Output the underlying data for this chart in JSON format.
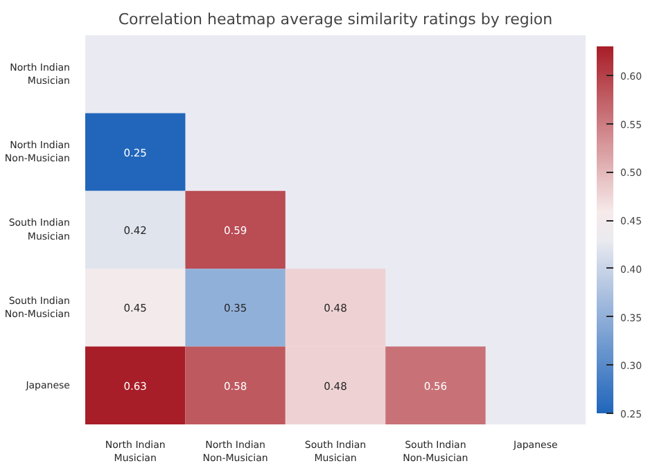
{
  "chart_data": {
    "type": "heatmap",
    "title": "Correlation heatmap average similarity ratings by region",
    "categories": [
      "North Indian Musician",
      "North Indian Non-Musician",
      "South Indian Musician",
      "South Indian Non-Musician",
      "Japanese"
    ],
    "y_categories": [
      "North Indian Musician",
      "North Indian Non-Musician",
      "South Indian Musician",
      "South Indian Non-Musician",
      "Japanese"
    ],
    "cells": [
      [
        null,
        null,
        null,
        null,
        null
      ],
      [
        0.25,
        null,
        null,
        null,
        null
      ],
      [
        0.42,
        0.59,
        null,
        null,
        null
      ],
      [
        0.45,
        0.35,
        0.48,
        null,
        null
      ],
      [
        0.63,
        0.58,
        0.48,
        0.56,
        null
      ]
    ],
    "clim": [
      0.25,
      0.63
    ],
    "cticks": [
      0.25,
      {
        "value": 0.3,
        "label": "0.30"
      },
      0.35,
      {
        "value": 0.4,
        "label": "0.40"
      },
      0.45,
      {
        "value": 0.5,
        "label": "0.50"
      },
      0.55,
      {
        "value": 0.6,
        "label": "0.60"
      }
    ],
    "data_labels": true,
    "grid": false
  }
}
